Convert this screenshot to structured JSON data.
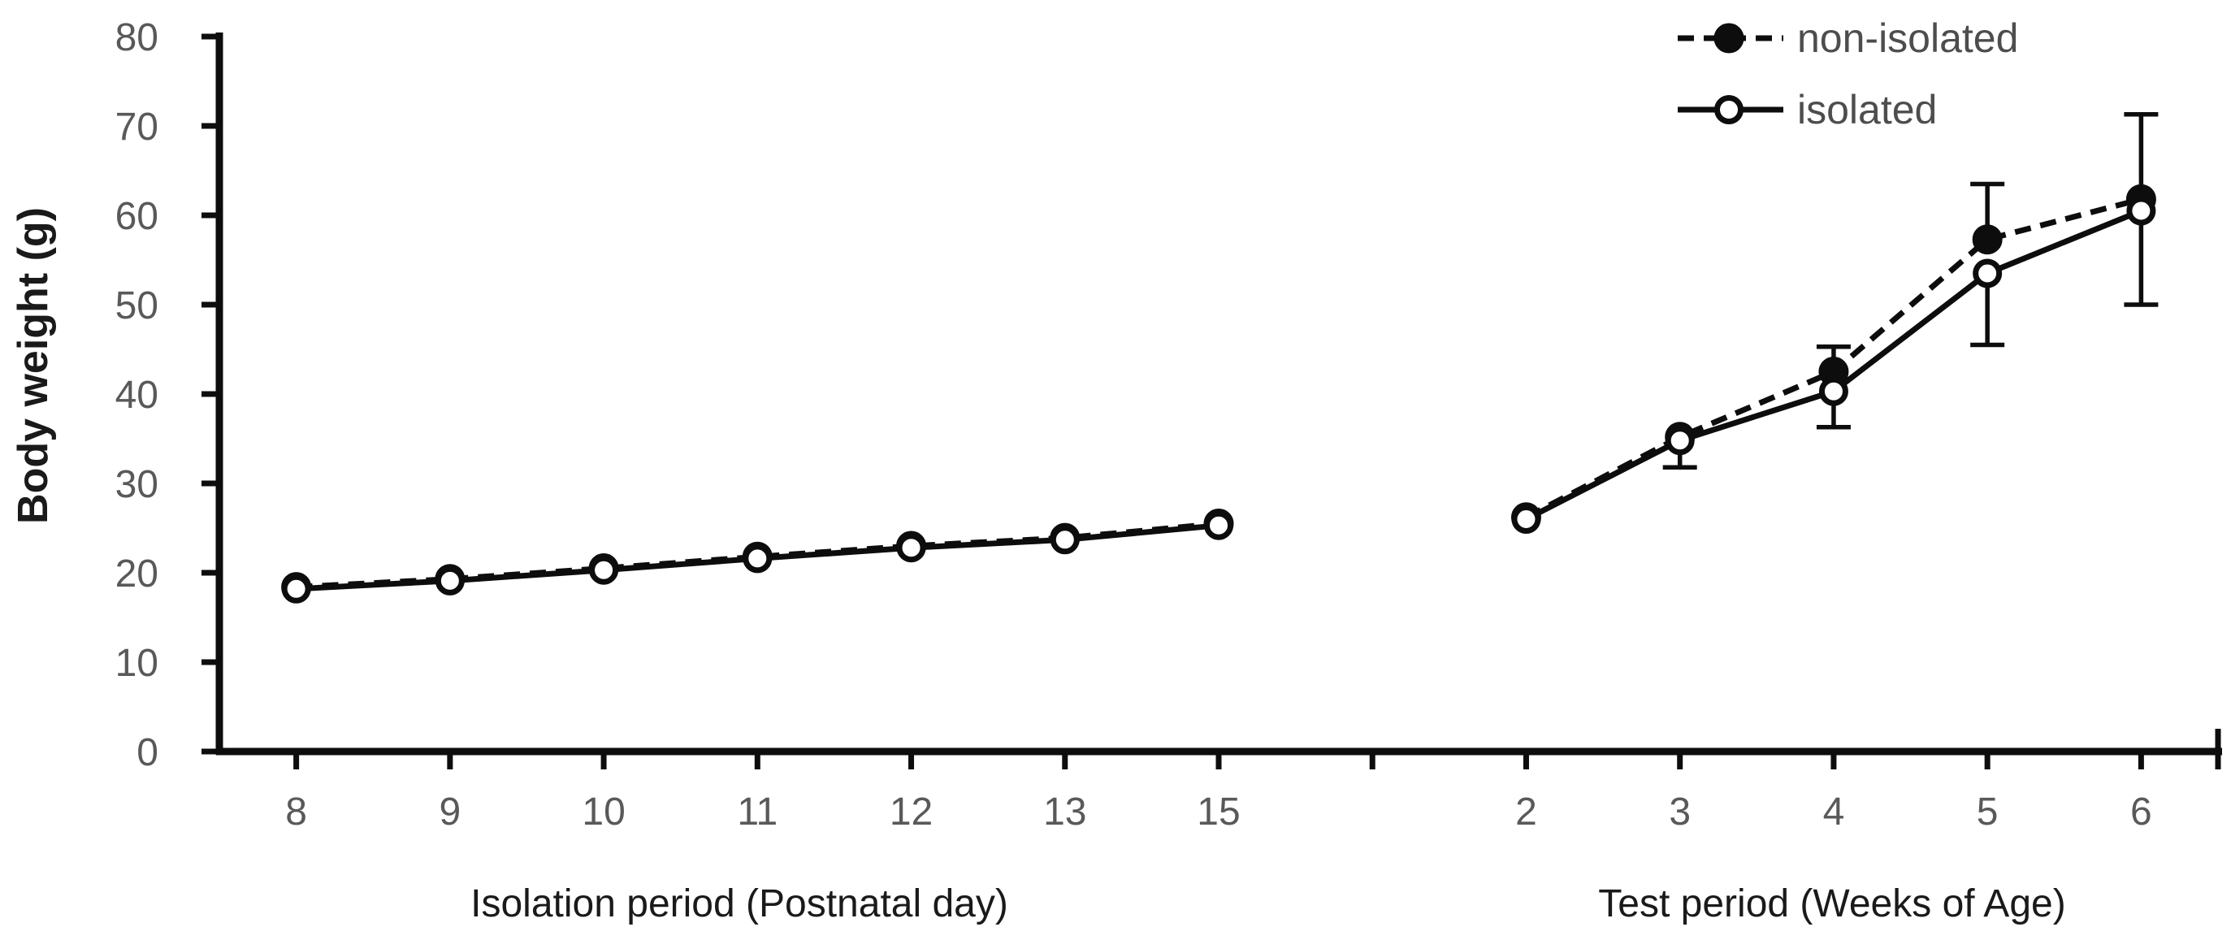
{
  "figure": {
    "background": "#ffffff",
    "line_color": "#0d0d0d",
    "tick_label_color": "#595959",
    "axis_title_color": "#1a1a1a",
    "legend_text_color": "#4d4d4d"
  },
  "chart_data": {
    "type": "line",
    "title": "",
    "ylabel": "Body weight (g)",
    "ylim": [
      0,
      80
    ],
    "yticks": [
      0,
      10,
      20,
      30,
      40,
      50,
      60,
      70,
      80
    ],
    "grid": false,
    "legend_position": "top-right",
    "categories": [
      "8",
      "9",
      "10",
      "11",
      "12",
      "13",
      "15",
      "",
      "2",
      "3",
      "4",
      "5",
      "6"
    ],
    "x_sections": [
      {
        "label": "Isolation period  (Postnatal day)",
        "category_span": [
          0,
          6
        ]
      },
      {
        "label": "Test period  (Weeks of Age)",
        "category_span": [
          8,
          12
        ]
      }
    ],
    "series": [
      {
        "name": "non-isolated",
        "line": "dashed",
        "marker": "filled-circle",
        "values": [
          18.4,
          19.3,
          20.5,
          21.8,
          23.0,
          23.9,
          25.5,
          null,
          26.2,
          35.2,
          42.5,
          57.3,
          61.8
        ],
        "err_plus": [
          0,
          0,
          0,
          0,
          0,
          0,
          0,
          null,
          0,
          0,
          2.8,
          6.2,
          9.5
        ],
        "err_minus": [
          0,
          0,
          0,
          0,
          0,
          0,
          0,
          null,
          0,
          0,
          0,
          0,
          0
        ]
      },
      {
        "name": "isolated",
        "line": "solid",
        "marker": "open-circle",
        "values": [
          18.2,
          19.1,
          20.3,
          21.6,
          22.8,
          23.7,
          25.3,
          null,
          26.0,
          34.8,
          40.3,
          53.5,
          60.5
        ],
        "err_plus": [
          0,
          0,
          0,
          0,
          0,
          0,
          0,
          null,
          0,
          0,
          0,
          0,
          0
        ],
        "err_minus": [
          0,
          0,
          0,
          0,
          0,
          0,
          0,
          null,
          0,
          3.0,
          4.0,
          8.0,
          10.5
        ]
      }
    ]
  }
}
